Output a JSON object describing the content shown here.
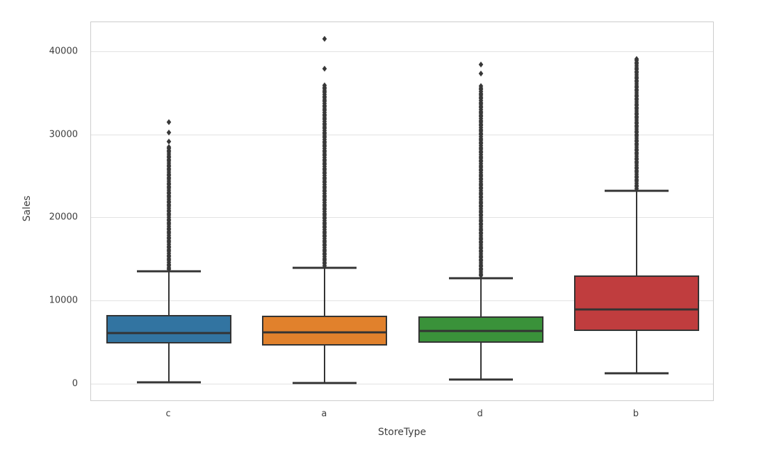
{
  "chart_data": {
    "type": "boxplot",
    "title": "",
    "xlabel": "StoreType",
    "ylabel": "Sales",
    "categories": [
      "c",
      "a",
      "d",
      "b"
    ],
    "y_ticks": [
      0,
      10000,
      20000,
      30000,
      40000
    ],
    "ylim": [
      -2100,
      43600
    ],
    "grid": true,
    "legend": "none",
    "series": [
      {
        "category": "c",
        "color": "#3274a1",
        "whisker_low": 250,
        "q1": 4900,
        "median": 6200,
        "q3": 8350,
        "whisker_high": 13600,
        "outliers_dense_range": [
          13750,
          28600
        ],
        "outliers_isolated": [
          29200,
          30300,
          31600
        ]
      },
      {
        "category": "a",
        "color": "#e1812c",
        "whisker_low": 150,
        "q1": 4700,
        "median": 6250,
        "q3": 8300,
        "whisker_high": 14000,
        "outliers_dense_range": [
          14150,
          36000
        ],
        "outliers_isolated": [
          38000,
          41600
        ]
      },
      {
        "category": "d",
        "color": "#3a923a",
        "whisker_low": 600,
        "q1": 5000,
        "median": 6400,
        "q3": 8150,
        "whisker_high": 12800,
        "outliers_dense_range": [
          12950,
          35900
        ],
        "outliers_isolated": [
          37400,
          38500
        ]
      },
      {
        "category": "b",
        "color": "#c03d3e",
        "whisker_low": 1350,
        "q1": 6400,
        "median": 9000,
        "q3": 13100,
        "whisker_high": 23300,
        "outliers_dense_range": [
          23400,
          39200
        ],
        "outliers_isolated": []
      }
    ],
    "style": {
      "line_color": "#333333",
      "flier_color": "#383838",
      "grid_color": "#e2e2e2",
      "spine_color": "#cccccc",
      "text_color": "#3d3d3d"
    }
  }
}
